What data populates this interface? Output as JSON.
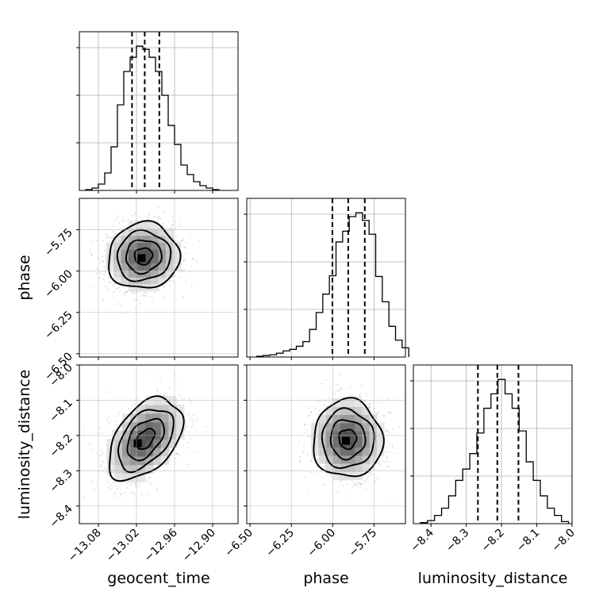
{
  "figure": {
    "type": "corner-plot"
  },
  "chart_data": {
    "type": "corner",
    "parameters": [
      "geocent_time",
      "phase",
      "luminosity_distance"
    ],
    "axis_labels": {
      "x": [
        "geocent_time",
        "phase",
        "luminosity_distance"
      ],
      "y": [
        "phase",
        "luminosity_distance"
      ]
    },
    "ranges": {
      "geocent_time": [
        -13.11,
        -12.86
      ],
      "phase": [
        -6.52,
        -5.56
      ],
      "luminosity_distance": [
        -8.45,
        -8.0
      ]
    },
    "ticks": {
      "geocent_time": {
        "values": [
          -13.08,
          -13.02,
          -12.96,
          -12.9
        ],
        "labels": [
          "−13.08",
          "−13.02",
          "−12.96",
          "−12.90"
        ]
      },
      "phase": {
        "values": [
          -6.5,
          -6.25,
          -6.0,
          -5.75
        ],
        "labels": [
          "−6.50",
          "−6.25",
          "−6.00",
          "−5.75"
        ]
      },
      "luminosity_distance": {
        "values": [
          -8.4,
          -8.3,
          -8.2,
          -8.1,
          -8.0
        ],
        "labels": [
          "−8.4",
          "−8.3",
          "−8.2",
          "−8.1",
          "−8.0"
        ]
      }
    },
    "diagonal_histograms": [
      {
        "parameter": "geocent_time",
        "bin_edges": [
          -13.1,
          -13.09,
          -13.08,
          -13.07,
          -13.06,
          -13.05,
          -13.04,
          -13.03,
          -13.02,
          -13.01,
          -13.0,
          -12.99,
          -12.98,
          -12.97,
          -12.96,
          -12.95,
          -12.94,
          -12.93,
          -12.92,
          -12.91,
          -12.9,
          -12.89
        ],
        "counts": [
          1,
          3,
          8,
          22,
          55,
          108,
          150,
          168,
          182,
          178,
          168,
          150,
          120,
          82,
          58,
          32,
          20,
          11,
          6,
          3,
          1
        ],
        "quantiles": [
          -13.027,
          -13.007,
          -12.984
        ],
        "grid_y": [
          0.3,
          0.6,
          0.9
        ]
      },
      {
        "parameter": "phase",
        "bin_edges": [
          -6.46,
          -6.42,
          -6.38,
          -6.34,
          -6.3,
          -6.26,
          -6.22,
          -6.18,
          -6.14,
          -6.1,
          -6.06,
          -6.02,
          -5.98,
          -5.94,
          -5.9,
          -5.86,
          -5.82,
          -5.78,
          -5.74,
          -5.7,
          -5.66,
          -5.62,
          -5.58,
          -5.54
        ],
        "counts": [
          1,
          2,
          3,
          5,
          8,
          10,
          14,
          20,
          36,
          58,
          82,
          106,
          150,
          164,
          183,
          188,
          178,
          160,
          105,
          72,
          40,
          22,
          12
        ],
        "quantiles": [
          -6.002,
          -5.906,
          -5.806
        ],
        "grid_y": [
          0.3,
          0.6,
          0.9
        ]
      },
      {
        "parameter": "luminosity_distance",
        "bin_edges": [
          -8.43,
          -8.41,
          -8.39,
          -8.37,
          -8.35,
          -8.33,
          -8.31,
          -8.29,
          -8.27,
          -8.25,
          -8.23,
          -8.21,
          -8.19,
          -8.17,
          -8.15,
          -8.13,
          -8.11,
          -8.09,
          -8.07,
          -8.05,
          -8.03,
          -8.01
        ],
        "counts": [
          1,
          3,
          8,
          15,
          27,
          42,
          53,
          68,
          88,
          112,
          126,
          140,
          126,
          112,
          90,
          60,
          42,
          27,
          15,
          8,
          2
        ],
        "quantiles": [
          -8.267,
          -8.212,
          -8.152
        ],
        "grid_y": [
          0.3,
          0.6,
          0.9
        ]
      }
    ],
    "panels_2d": [
      {
        "x_param": "geocent_time",
        "y_param": "phase",
        "center": [
          -13.009,
          -5.91
        ],
        "sigma": [
          0.028,
          0.1
        ],
        "correlation": 0.05,
        "peak": [
          -13.012,
          -5.922
        ],
        "contour_levels": [
          0.5,
          1.0,
          1.5,
          2.0
        ]
      },
      {
        "x_param": "geocent_time",
        "y_param": "luminosity_distance",
        "center": [
          -13.006,
          -8.21
        ],
        "sigma": [
          0.029,
          0.058
        ],
        "correlation": 0.45,
        "peak": [
          -13.018,
          -8.222
        ],
        "contour_levels": [
          0.5,
          1.0,
          1.5,
          2.0
        ]
      },
      {
        "x_param": "phase",
        "y_param": "luminosity_distance",
        "center": [
          -5.91,
          -8.21
        ],
        "sigma": [
          0.105,
          0.055
        ],
        "correlation": 0.0,
        "peak": [
          -5.92,
          -8.215
        ],
        "contour_levels": [
          0.5,
          1.0,
          1.5,
          2.0
        ]
      }
    ]
  }
}
